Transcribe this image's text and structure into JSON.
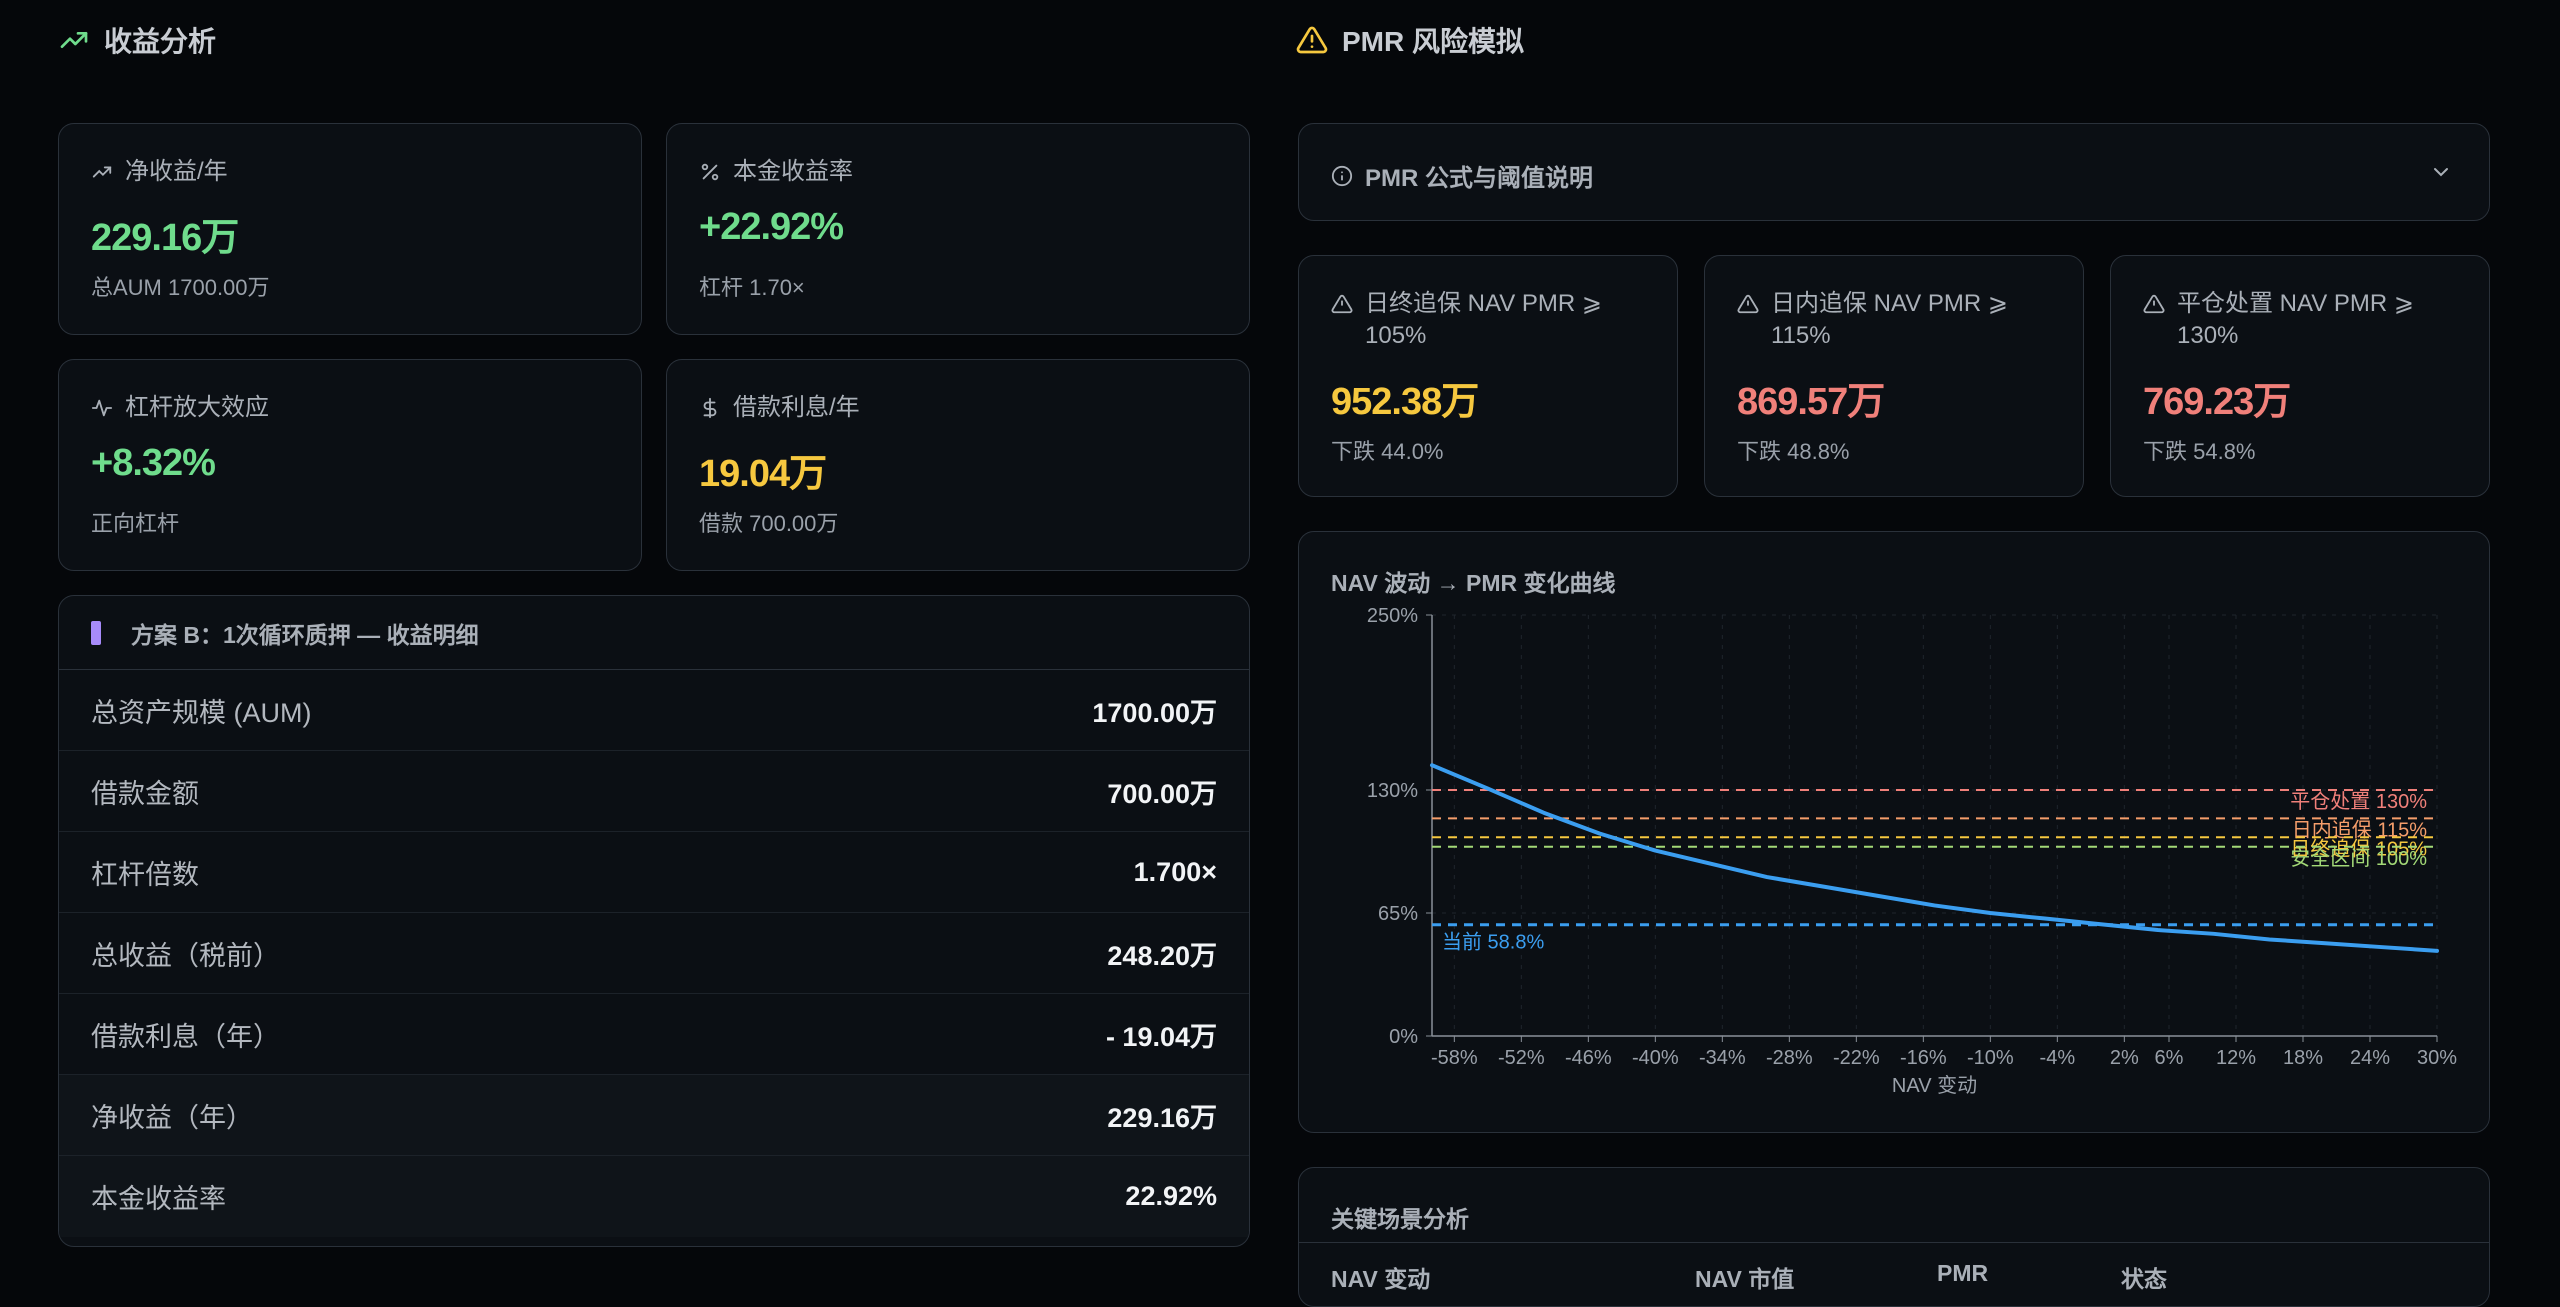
{
  "left_section": {
    "title": "收益分析"
  },
  "right_section": {
    "title": "PMR 风险模拟"
  },
  "stats": [
    {
      "label": "净收益/年",
      "icon": "trending-up-icon",
      "value": "229.16万",
      "sub": "总AUM 1700.00万",
      "color": "#6fdc8c"
    },
    {
      "label": "本金收益率",
      "icon": "percent-icon",
      "value": "+22.92%",
      "sub": "杠杆 1.70×",
      "color": "#6fdc8c"
    },
    {
      "label": "杠杆放大效应",
      "icon": "activity-icon",
      "value": "+8.32%",
      "sub": "正向杠杆",
      "color": "#6fdc8c"
    },
    {
      "label": "借款利息/年",
      "icon": "dollar-icon",
      "value": "19.04万",
      "sub": "借款 700.00万",
      "color": "#f6c83f"
    }
  ],
  "detail_table": {
    "title": "方案 B：1次循环质押 — 收益明细",
    "rows": [
      {
        "label": "总资产规模 (AUM)",
        "value": "1700.00万"
      },
      {
        "label": "借款金额",
        "value": "700.00万"
      },
      {
        "label": "杠杆倍数",
        "value": "1.700×"
      },
      {
        "label": "总收益（税前）",
        "value": "248.20万"
      },
      {
        "label": "借款利息（年）",
        "value": "- 19.04万"
      },
      {
        "label": "净收益（年）",
        "value": "229.16万"
      },
      {
        "label": "本金收益率",
        "value": "22.92%"
      }
    ]
  },
  "formula_panel": {
    "label": "PMR 公式与阈值说明",
    "expanded": false
  },
  "thresholds": [
    {
      "label": "日终追保 NAV PMR ⩾ 105%",
      "value": "952.38万",
      "sub": "下跌 44.0%",
      "color": "#f6c83f"
    },
    {
      "label": "日内追保 NAV PMR ⩾ 115%",
      "value": "869.57万",
      "sub": "下跌 48.8%",
      "color": "#f0807a"
    },
    {
      "label": "平仓处置 NAV PMR ⩾ 130%",
      "value": "769.23万",
      "sub": "下跌 54.8%",
      "color": "#f0807a"
    }
  ],
  "chart_title": "NAV 波动 → PMR 变化曲线",
  "chart_data": {
    "type": "line",
    "xlabel": "NAV 变动",
    "ylabel": "",
    "x_ticks": [
      "-58%",
      "-52%",
      "-46%",
      "-40%",
      "-34%",
      "-28%",
      "-22%",
      "-16%",
      "-10%",
      "-4%",
      "2%",
      "6%",
      "12%",
      "18%",
      "24%",
      "30%"
    ],
    "x_tick_values": [
      -58,
      -52,
      -46,
      -40,
      -34,
      -28,
      -22,
      -16,
      -10,
      -4,
      2,
      6,
      12,
      18,
      24,
      30
    ],
    "y_ticks": [
      "0%",
      "65%",
      "130%",
      "250%"
    ],
    "y_tick_values": [
      0,
      65,
      130,
      250
    ],
    "xlim": [
      -60,
      30
    ],
    "ylim": [
      0,
      250
    ],
    "series": [
      {
        "x": [
          -60,
          -55,
          -50,
          -45,
          -40,
          -35,
          -30,
          -25,
          -20,
          -15,
          -10,
          -5,
          0,
          5,
          10,
          15,
          20,
          25,
          30
        ],
        "y": [
          147,
          131,
          118,
          107,
          98,
          91,
          84,
          79,
          74,
          69,
          65,
          62,
          59,
          56,
          54,
          51,
          49,
          47,
          45
        ],
        "color": "#3b9ef0"
      }
    ],
    "reference_lines": [
      {
        "label": "平仓处置 130%",
        "y": 130,
        "color": "#f0807a"
      },
      {
        "label": "日内追保 115%",
        "y": 115,
        "color": "#f59e6b"
      },
      {
        "label": "日终追保 105%",
        "y": 105,
        "color": "#f6c83f"
      },
      {
        "label": "安全区间 100%",
        "y": 100,
        "color": "#a3d977"
      },
      {
        "label": "当前 58.8%",
        "y": 58.8,
        "color": "#3b9ef0"
      }
    ]
  },
  "scenario": {
    "title": "关键场景分析",
    "columns": [
      "NAV 变动",
      "NAV 市值",
      "PMR",
      "状态"
    ]
  }
}
